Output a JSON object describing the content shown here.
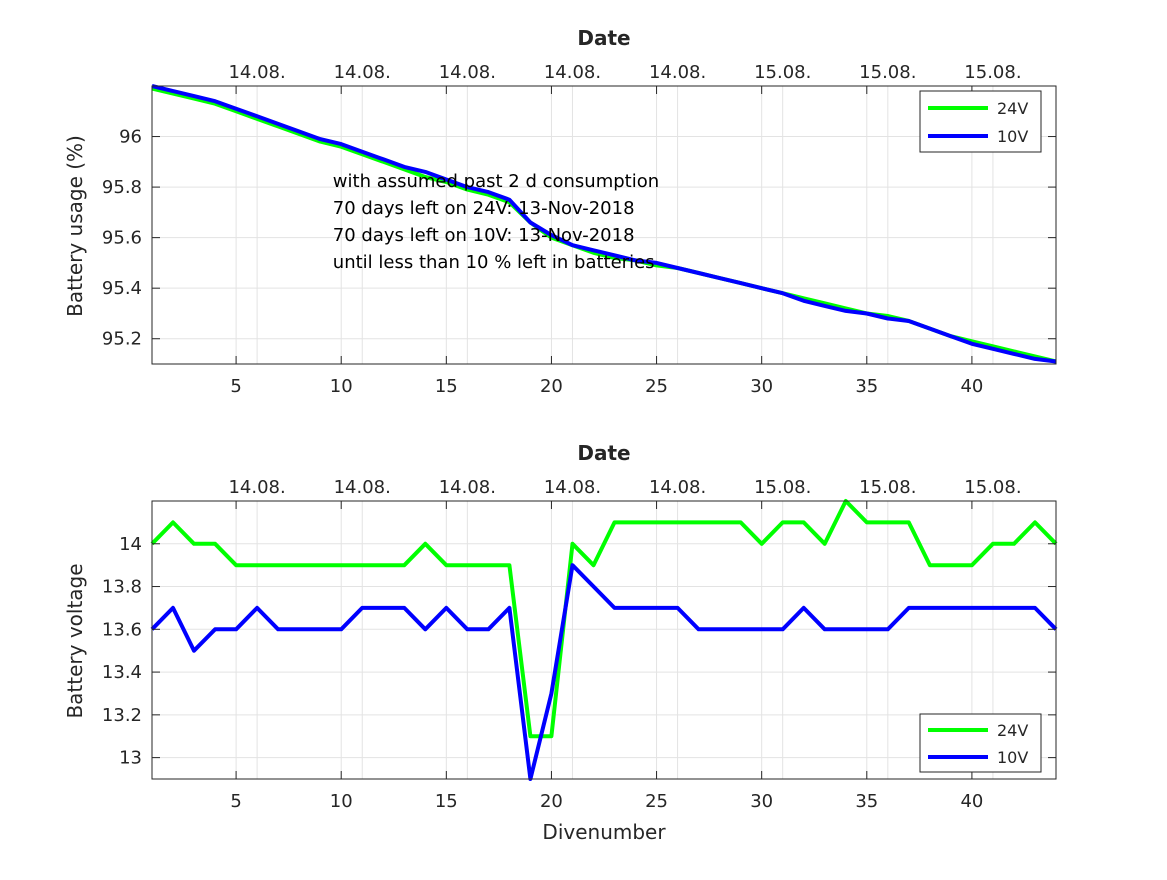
{
  "chart_data": [
    {
      "type": "line",
      "title": "Date",
      "xlabel": "",
      "ylabel": "Battery usage (%)",
      "xlim": [
        1,
        44
      ],
      "ylim": [
        95.1,
        96.2
      ],
      "x_ticks": [
        5,
        10,
        15,
        20,
        25,
        30,
        35,
        40
      ],
      "y_ticks": [
        95.2,
        95.4,
        95.6,
        95.8,
        96
      ],
      "top_ticks": [
        {
          "x": 6,
          "label": "14.08."
        },
        {
          "x": 11,
          "label": "14.08."
        },
        {
          "x": 16,
          "label": "14.08."
        },
        {
          "x": 21,
          "label": "14.08."
        },
        {
          "x": 26,
          "label": "14.08."
        },
        {
          "x": 31,
          "label": "15.08."
        },
        {
          "x": 36,
          "label": "15.08."
        },
        {
          "x": 41,
          "label": "15.08."
        }
      ],
      "grid": true,
      "legend": "top-right",
      "annotation": {
        "lines": [
          "with assumed past 2 d consumption",
          "70 days left on 24V: 13-Nov-2018",
          "70 days left on 10V: 13-Nov-2018",
          "until less than 10 % left in batteries"
        ],
        "x": 9.6,
        "y": 95.8
      },
      "x": [
        1,
        2,
        3,
        4,
        5,
        6,
        7,
        8,
        9,
        10,
        11,
        12,
        13,
        14,
        15,
        16,
        17,
        18,
        19,
        20,
        21,
        22,
        23,
        24,
        25,
        26,
        27,
        28,
        29,
        30,
        31,
        32,
        33,
        34,
        35,
        36,
        37,
        38,
        39,
        40,
        41,
        42,
        43,
        44
      ],
      "series": [
        {
          "name": "24V",
          "color": "#00ff00",
          "values": [
            96.19,
            96.17,
            96.15,
            96.13,
            96.1,
            96.07,
            96.04,
            96.01,
            95.98,
            95.96,
            95.93,
            95.9,
            95.87,
            95.84,
            95.82,
            95.79,
            95.77,
            95.74,
            95.66,
            95.6,
            95.57,
            95.54,
            95.52,
            95.51,
            95.49,
            95.48,
            95.46,
            95.44,
            95.42,
            95.4,
            95.38,
            95.36,
            95.34,
            95.32,
            95.3,
            95.29,
            95.27,
            95.24,
            95.21,
            95.19,
            95.17,
            95.15,
            95.13,
            95.11
          ]
        },
        {
          "name": "10V",
          "color": "#0000ff",
          "values": [
            96.2,
            96.18,
            96.16,
            96.14,
            96.11,
            96.08,
            96.05,
            96.02,
            95.99,
            95.97,
            95.94,
            95.91,
            95.88,
            95.86,
            95.83,
            95.8,
            95.78,
            95.75,
            95.66,
            95.61,
            95.57,
            95.55,
            95.53,
            95.51,
            95.5,
            95.48,
            95.46,
            95.44,
            95.42,
            95.4,
            95.38,
            95.35,
            95.33,
            95.31,
            95.3,
            95.28,
            95.27,
            95.24,
            95.21,
            95.18,
            95.16,
            95.14,
            95.12,
            95.11
          ]
        }
      ]
    },
    {
      "type": "line",
      "title": "Date",
      "xlabel": "Divenumber",
      "ylabel": "Battery voltage",
      "xlim": [
        1,
        44
      ],
      "ylim": [
        12.9,
        14.2
      ],
      "x_ticks": [
        5,
        10,
        15,
        20,
        25,
        30,
        35,
        40
      ],
      "y_ticks": [
        13,
        13.2,
        13.4,
        13.6,
        13.8,
        14
      ],
      "top_ticks": [
        {
          "x": 6,
          "label": "14.08."
        },
        {
          "x": 11,
          "label": "14.08."
        },
        {
          "x": 16,
          "label": "14.08."
        },
        {
          "x": 21,
          "label": "14.08."
        },
        {
          "x": 26,
          "label": "14.08."
        },
        {
          "x": 31,
          "label": "15.08."
        },
        {
          "x": 36,
          "label": "15.08."
        },
        {
          "x": 41,
          "label": "15.08."
        }
      ],
      "grid": true,
      "legend": "bottom-right",
      "x": [
        1,
        2,
        3,
        4,
        5,
        6,
        7,
        8,
        9,
        10,
        11,
        12,
        13,
        14,
        15,
        16,
        17,
        18,
        19,
        20,
        21,
        22,
        23,
        24,
        25,
        26,
        27,
        28,
        29,
        30,
        31,
        32,
        33,
        34,
        35,
        36,
        37,
        38,
        39,
        40,
        41,
        42,
        43,
        44
      ],
      "series": [
        {
          "name": "24V",
          "color": "#00ff00",
          "values": [
            14,
            14.1,
            14,
            14,
            13.9,
            13.9,
            13.9,
            13.9,
            13.9,
            13.9,
            13.9,
            13.9,
            13.9,
            14,
            13.9,
            13.9,
            13.9,
            13.9,
            13.1,
            13.1,
            14,
            13.9,
            14.1,
            14.1,
            14.1,
            14.1,
            14.1,
            14.1,
            14.1,
            14,
            14.1,
            14.1,
            14,
            14.2,
            14.1,
            14.1,
            14.1,
            13.9,
            13.9,
            13.9,
            14,
            14,
            14.1,
            14
          ]
        },
        {
          "name": "10V",
          "color": "#0000ff",
          "values": [
            13.6,
            13.7,
            13.5,
            13.6,
            13.6,
            13.7,
            13.6,
            13.6,
            13.6,
            13.6,
            13.7,
            13.7,
            13.7,
            13.6,
            13.7,
            13.6,
            13.6,
            13.7,
            12.9,
            13.3,
            13.9,
            13.8,
            13.7,
            13.7,
            13.7,
            13.7,
            13.6,
            13.6,
            13.6,
            13.6,
            13.6,
            13.7,
            13.6,
            13.6,
            13.6,
            13.6,
            13.7,
            13.7,
            13.7,
            13.7,
            13.7,
            13.7,
            13.7,
            13.6
          ]
        }
      ]
    }
  ]
}
